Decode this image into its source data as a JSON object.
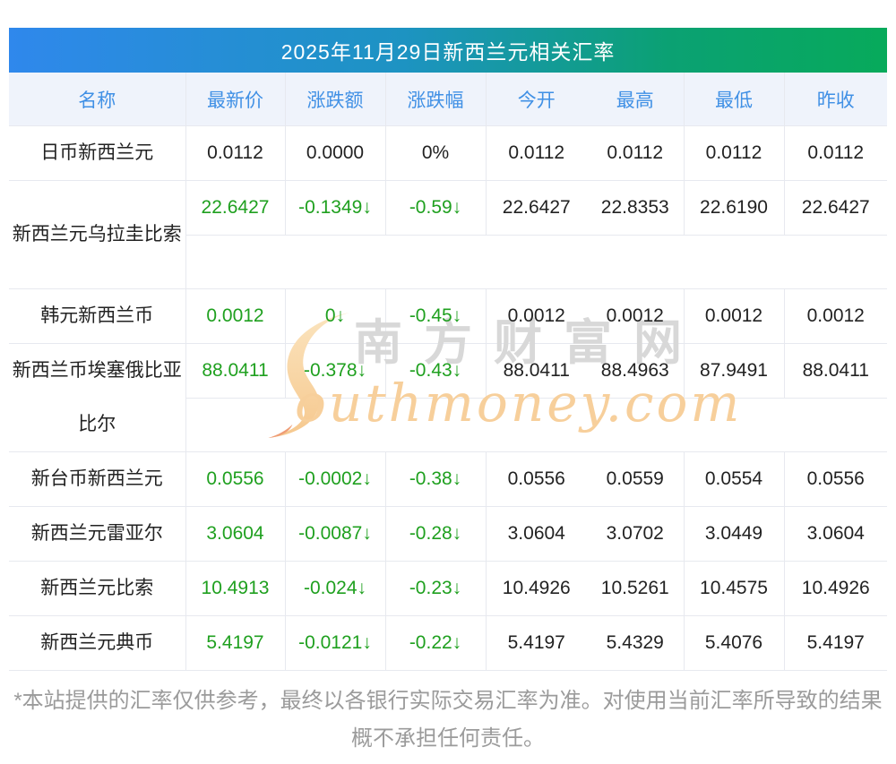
{
  "header": {
    "title": "2025年11月29日新西兰元相关汇率"
  },
  "table": {
    "columns": [
      "名称",
      "最新价",
      "涨跌额",
      "涨跌幅",
      "今开",
      "最高",
      "最低",
      "昨收"
    ],
    "rows": [
      {
        "name": "日币新西兰元",
        "change_green": false,
        "two_line": false,
        "values": [
          "0.0112",
          "0.0000",
          "0%",
          "0.0112",
          "0.0112",
          "0.0112",
          "0.0112"
        ]
      },
      {
        "name": "新西兰元乌拉圭比索",
        "change_green": true,
        "two_line": true,
        "values": [
          "22.6427",
          "-0.1349↓",
          "-0.59↓",
          "22.6427",
          "22.8353",
          "22.6190",
          "22.6427"
        ]
      },
      {
        "name": "韩元新西兰币",
        "change_green": true,
        "two_line": false,
        "values": [
          "0.0012",
          "0↓",
          "-0.45↓",
          "0.0012",
          "0.0012",
          "0.0012",
          "0.0012"
        ]
      },
      {
        "name": "新西兰币埃塞俄比亚比尔",
        "change_green": true,
        "two_line": true,
        "values": [
          "88.0411",
          "-0.378↓",
          "-0.43↓",
          "88.0411",
          "88.4963",
          "87.9491",
          "88.0411"
        ]
      },
      {
        "name": "新台币新西兰元",
        "change_green": true,
        "two_line": false,
        "values": [
          "0.0556",
          "-0.0002↓",
          "-0.38↓",
          "0.0556",
          "0.0559",
          "0.0554",
          "0.0556"
        ]
      },
      {
        "name": "新西兰元雷亚尔",
        "change_green": true,
        "two_line": false,
        "values": [
          "3.0604",
          "-0.0087↓",
          "-0.28↓",
          "3.0604",
          "3.0702",
          "3.0449",
          "3.0604"
        ]
      },
      {
        "name": "新西兰元比索",
        "change_green": true,
        "two_line": false,
        "values": [
          "10.4913",
          "-0.024↓",
          "-0.23↓",
          "10.4926",
          "10.5261",
          "10.4575",
          "10.4926"
        ]
      },
      {
        "name": "新西兰元典币",
        "change_green": true,
        "two_line": false,
        "values": [
          "5.4197",
          "-0.0121↓",
          "-0.22↓",
          "5.4197",
          "5.4329",
          "5.4076",
          "5.4197"
        ]
      }
    ]
  },
  "watermark": {
    "cn": "南方财富网",
    "en": "outhmoney.com"
  },
  "disclaimer": {
    "line1": "*本站提供的汇率仅供参考，最终以各银行实际交易汇率为准。对使用当前汇率所导致的结果",
    "line2": "概不承担任何责任。"
  },
  "colors": {
    "title_gradient_start": "#2f88ec",
    "title_gradient_end": "#07aa5b",
    "header_text_blue": "#4090e5",
    "decline_green": "#1fa01f",
    "header_row_bg": "#eff3fb",
    "watermark_orange": "#f7cf9b",
    "watermark_gray": "#d8d8d8",
    "disclaimer_gray": "#9b9b9b"
  }
}
